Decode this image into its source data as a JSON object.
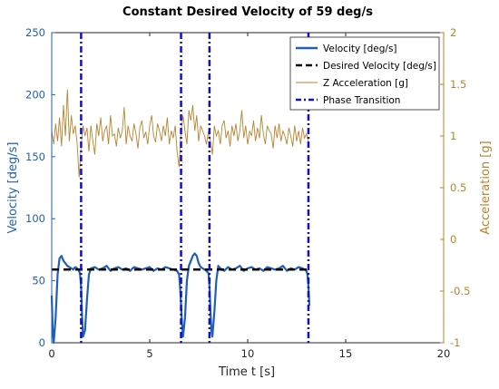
{
  "chart_data": {
    "type": "line",
    "title": "Constant Desired Velocity of 59 deg/s",
    "xlabel": "Time t [s]",
    "ylabel_left": "Velocity [deg/s]",
    "ylabel_right": "Acceleration [g]",
    "xlim": [
      0,
      20
    ],
    "ylim_left": [
      0,
      250
    ],
    "ylim_right": [
      -1,
      2
    ],
    "xticks": [
      "0",
      "5",
      "10",
      "15",
      "20"
    ],
    "yticks_left": [
      "0",
      "50",
      "100",
      "150",
      "200",
      "250"
    ],
    "yticks_right": [
      "-1",
      "-0.5",
      "0",
      "0.5",
      "1",
      "1.5",
      "2"
    ],
    "legend_position": "top-right",
    "colors": {
      "velocity": "#1f5fb4",
      "desired": "#000000",
      "accel": "#b8832f",
      "phase": "#1010c8",
      "left_axis": "#1f5fb4",
      "right_axis": "#b8832f"
    },
    "series": [
      {
        "name": "Velocity [deg/s]",
        "axis": "left",
        "x": [
          0.0,
          0.05,
          0.1,
          0.2,
          0.3,
          0.4,
          0.5,
          0.6,
          0.7,
          0.8,
          0.9,
          1.0,
          1.1,
          1.2,
          1.3,
          1.4,
          1.45,
          1.5,
          1.55,
          1.6,
          1.7,
          1.8,
          1.9,
          2.0,
          2.2,
          2.4,
          2.6,
          2.8,
          3.0,
          3.2,
          3.4,
          3.6,
          3.8,
          4.0,
          4.2,
          4.4,
          4.6,
          4.8,
          5.0,
          5.2,
          5.4,
          5.6,
          5.8,
          6.0,
          6.2,
          6.4,
          6.5,
          6.55,
          6.6,
          6.65,
          6.7,
          6.8,
          6.9,
          7.0,
          7.1,
          7.2,
          7.3,
          7.4,
          7.5,
          7.6,
          7.7,
          7.8,
          7.9,
          8.0,
          8.05,
          8.1,
          8.15,
          8.2,
          8.3,
          8.4,
          8.5,
          8.6,
          8.8,
          9.0,
          9.2,
          9.4,
          9.6,
          9.8,
          10.0,
          10.2,
          10.4,
          10.6,
          10.8,
          11.0,
          11.2,
          11.4,
          11.6,
          11.8,
          12.0,
          12.2,
          12.4,
          12.6,
          12.8,
          13.0,
          13.05,
          13.1,
          13.15
        ],
        "values": [
          38,
          10,
          0,
          20,
          55,
          68,
          70,
          66,
          64,
          62,
          61,
          60,
          59,
          61,
          60,
          58,
          55,
          45,
          20,
          5,
          10,
          35,
          55,
          60,
          61,
          59,
          60,
          62,
          58,
          60,
          61,
          59,
          60,
          58,
          61,
          60,
          59,
          60,
          61,
          58,
          60,
          59,
          61,
          60,
          59,
          58,
          55,
          45,
          30,
          15,
          5,
          20,
          50,
          62,
          66,
          70,
          72,
          70,
          64,
          61,
          60,
          59,
          58,
          56,
          45,
          25,
          10,
          5,
          25,
          50,
          62,
          60,
          58,
          61,
          59,
          60,
          62,
          58,
          60,
          61,
          59,
          60,
          58,
          61,
          60,
          59,
          60,
          62,
          58,
          60,
          59,
          61,
          60,
          58,
          55,
          45,
          30
        ]
      },
      {
        "name": "Desired Velocity [deg/s]",
        "axis": "left",
        "x": [
          0,
          13.1
        ],
        "values": [
          59,
          59
        ]
      },
      {
        "name": "Z Acceleration [g]",
        "axis": "right",
        "x": [
          0.0,
          0.1,
          0.2,
          0.3,
          0.4,
          0.5,
          0.6,
          0.7,
          0.8,
          0.9,
          1.0,
          1.1,
          1.2,
          1.3,
          1.4,
          1.5,
          1.6,
          1.7,
          1.8,
          1.9,
          2.0,
          2.1,
          2.2,
          2.3,
          2.4,
          2.5,
          2.6,
          2.7,
          2.8,
          2.9,
          3.0,
          3.1,
          3.2,
          3.3,
          3.4,
          3.5,
          3.6,
          3.7,
          3.8,
          3.9,
          4.0,
          4.1,
          4.2,
          4.3,
          4.4,
          4.5,
          4.6,
          4.7,
          4.8,
          4.9,
          5.0,
          5.1,
          5.2,
          5.3,
          5.4,
          5.5,
          5.6,
          5.7,
          5.8,
          5.9,
          6.0,
          6.1,
          6.2,
          6.3,
          6.4,
          6.5,
          6.6,
          6.7,
          6.8,
          6.9,
          7.0,
          7.1,
          7.2,
          7.3,
          7.4,
          7.5,
          7.6,
          7.7,
          7.8,
          7.9,
          8.0,
          8.1,
          8.2,
          8.3,
          8.4,
          8.5,
          8.6,
          8.7,
          8.8,
          8.9,
          9.0,
          9.1,
          9.2,
          9.3,
          9.4,
          9.5,
          9.6,
          9.7,
          9.8,
          9.9,
          10.0,
          10.1,
          10.2,
          10.3,
          10.4,
          10.5,
          10.6,
          10.7,
          10.8,
          10.9,
          11.0,
          11.1,
          11.2,
          11.3,
          11.4,
          11.5,
          11.6,
          11.7,
          11.8,
          11.9,
          12.0,
          12.1,
          12.2,
          12.3,
          12.4,
          12.5,
          12.6,
          12.7,
          12.8,
          12.9,
          13.0,
          13.1
        ],
        "values": [
          1.05,
          0.92,
          1.12,
          0.95,
          1.18,
          0.9,
          1.3,
          1.0,
          1.45,
          0.95,
          1.2,
          1.02,
          1.1,
          0.92,
          0.6,
          0.9,
          1.1,
          1.0,
          1.08,
          0.85,
          1.1,
          0.95,
          0.82,
          1.12,
          1.0,
          1.18,
          0.95,
          1.05,
          1.1,
          0.92,
          1.2,
          1.0,
          1.02,
          0.9,
          1.08,
          0.98,
          1.05,
          1.28,
          0.92,
          1.1,
          1.0,
          0.95,
          1.12,
          1.02,
          0.88,
          1.08,
          1.15,
          0.98,
          1.04,
          0.92,
          1.1,
          1.2,
          1.0,
          0.94,
          1.12,
          1.05,
          0.95,
          1.1,
          1.0,
          1.18,
          0.92,
          1.05,
          0.98,
          1.1,
          0.85,
          0.7,
          1.05,
          1.2,
          1.05,
          0.92,
          1.25,
          1.15,
          1.3,
          1.05,
          1.2,
          0.95,
          1.1,
          1.05,
          1.0,
          0.92,
          1.05,
          0.95,
          0.82,
          1.1,
          1.0,
          1.05,
          0.92,
          1.1,
          1.15,
          0.98,
          1.05,
          0.9,
          1.1,
          1.0,
          1.12,
          0.95,
          1.05,
          1.25,
          0.98,
          1.1,
          0.92,
          1.05,
          1.0,
          1.15,
          0.95,
          1.08,
          0.98,
          1.2,
          1.02,
          0.92,
          1.1,
          1.05,
          1.02,
          0.88,
          1.1,
          0.98,
          1.12,
          0.95,
          1.05,
          1.0,
          0.92,
          1.08,
          1.0,
          0.9,
          1.1,
          0.95,
          1.05,
          0.92,
          1.08,
          0.98,
          1.02,
          0.95
        ]
      },
      {
        "name": "Phase Transition",
        "axis": "left",
        "vlines": [
          1.5,
          6.6,
          8.05,
          13.1
        ]
      }
    ]
  }
}
